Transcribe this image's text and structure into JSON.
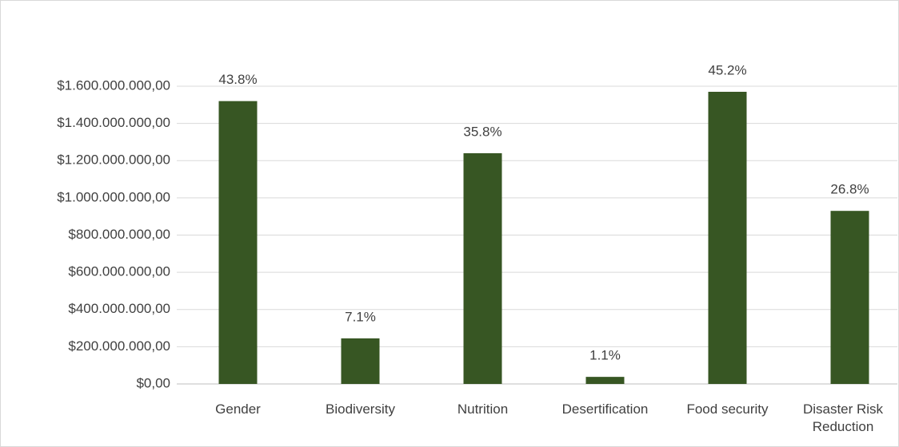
{
  "chart_data": {
    "type": "bar",
    "categories": [
      "Gender",
      "Biodiversity",
      "Nutrition",
      "Desertification",
      "Food security",
      "Disaster Risk Reduction"
    ],
    "values": [
      1520000000,
      245000000,
      1240000000,
      38000000,
      1570000000,
      930000000
    ],
    "data_labels": [
      "43.8%",
      "7.1%",
      "35.8%",
      "1.1%",
      "45.2%",
      "26.8%"
    ],
    "color": "#375623",
    "ylim": [
      0,
      1600000000
    ],
    "yticks": [
      {
        "value": 0,
        "label": "$0,00"
      },
      {
        "value": 200000000,
        "label": "$200.000.000,00"
      },
      {
        "value": 400000000,
        "label": "$400.000.000,00"
      },
      {
        "value": 600000000,
        "label": "$600.000.000,00"
      },
      {
        "value": 800000000,
        "label": "$800.000.000,00"
      },
      {
        "value": 1000000000,
        "label": "$1.000.000.000,00"
      },
      {
        "value": 1200000000,
        "label": "$1.200.000.000,00"
      },
      {
        "value": 1400000000,
        "label": "$1.400.000.000,00"
      },
      {
        "value": 1600000000,
        "label": "$1.600.000.000,00"
      }
    ],
    "grid": true
  }
}
